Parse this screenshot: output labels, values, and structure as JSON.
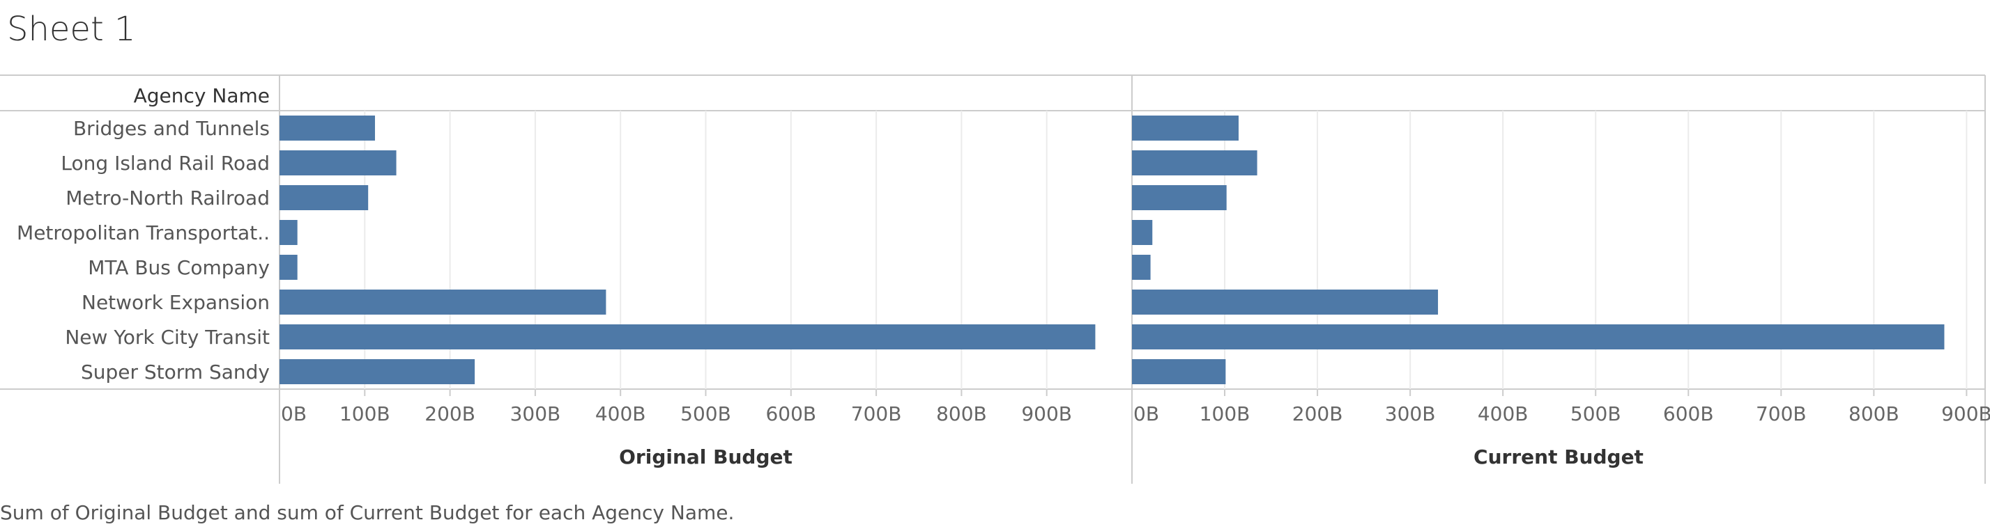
{
  "title": "Sheet 1",
  "caption": "Sum of Original Budget and sum of Current Budget for each Agency Name.",
  "row_header": "Agency Name",
  "colors": {
    "bar": "#4e79a7",
    "grid": "#ebebeb",
    "axis": "#cccccc"
  },
  "chart_data": {
    "type": "bar",
    "orientation": "horizontal",
    "categories": [
      "Bridges and Tunnels",
      "Long Island Rail Road",
      "Metro-North Railroad",
      "Metropolitan Transportat..",
      "MTA Bus Company",
      "Network Expansion",
      "New York City Transit",
      "Super Storm Sandy"
    ],
    "series": [
      {
        "name": "Original Budget",
        "values": [
          112,
          137,
          104,
          21,
          21,
          383,
          957,
          229
        ],
        "xlim": [
          0,
          1000
        ],
        "ticks": [
          "0B",
          "100B",
          "200B",
          "300B",
          "400B",
          "500B",
          "600B",
          "700B",
          "800B",
          "900B"
        ]
      },
      {
        "name": "Current Budget",
        "values": [
          115,
          135,
          102,
          22,
          20,
          330,
          876,
          101
        ],
        "xlim": [
          0,
          920
        ],
        "ticks": [
          "0B",
          "100B",
          "200B",
          "300B",
          "400B",
          "500B",
          "600B",
          "700B",
          "800B",
          "900B"
        ]
      }
    ],
    "grid": true
  }
}
